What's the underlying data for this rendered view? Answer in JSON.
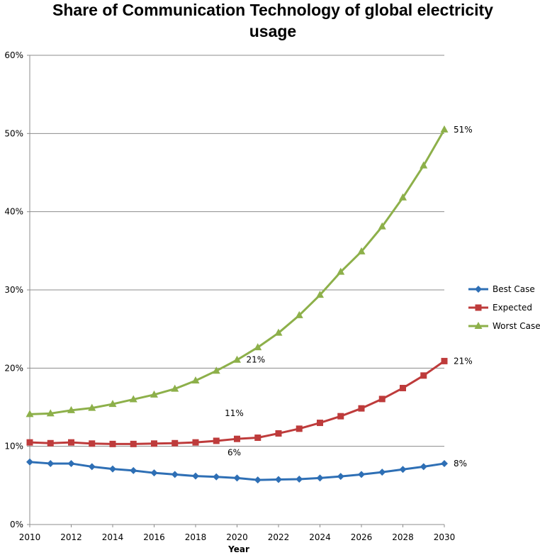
{
  "chart_data": {
    "type": "line",
    "title_lines": [
      "Share of Communication Technology of global electricity",
      "usage"
    ],
    "xlabel": "Year",
    "ylabel": "",
    "x": [
      2010,
      2011,
      2012,
      2013,
      2014,
      2015,
      2016,
      2017,
      2018,
      2019,
      2020,
      2021,
      2022,
      2023,
      2024,
      2025,
      2026,
      2027,
      2028,
      2029,
      2030
    ],
    "xlim": [
      2010,
      2030
    ],
    "ylim": [
      0,
      60
    ],
    "x_ticks": [
      "2010",
      "2012",
      "2014",
      "2016",
      "2018",
      "2020",
      "2022",
      "2024",
      "2026",
      "2028",
      "2030"
    ],
    "y_ticks": [
      "0%",
      "10%",
      "20%",
      "30%",
      "40%",
      "50%",
      "60%"
    ],
    "grid": "horizontal",
    "legend_position": "right",
    "series": [
      {
        "name": "Best Case",
        "color": "#2E6FB5",
        "marker": "diamond",
        "values": [
          8.0,
          7.8,
          7.8,
          7.4,
          7.1,
          6.9,
          6.6,
          6.4,
          6.2,
          6.1,
          5.95,
          5.7,
          5.75,
          5.8,
          5.95,
          6.15,
          6.4,
          6.7,
          7.05,
          7.4,
          7.8
        ]
      },
      {
        "name": "Expected",
        "color": "#BE3B3B",
        "marker": "square",
        "values": [
          10.5,
          10.4,
          10.5,
          10.35,
          10.3,
          10.3,
          10.35,
          10.4,
          10.5,
          10.7,
          10.95,
          11.1,
          11.65,
          12.25,
          13.0,
          13.85,
          14.85,
          16.05,
          17.45,
          19.05,
          20.9
        ]
      },
      {
        "name": "Worst Case",
        "color": "#8DB04A",
        "marker": "triangle",
        "values": [
          14.1,
          14.2,
          14.6,
          14.9,
          15.4,
          16.0,
          16.6,
          17.35,
          18.4,
          19.65,
          21.05,
          22.65,
          24.5,
          26.75,
          29.35,
          32.3,
          34.9,
          38.1,
          41.8,
          45.9,
          50.5
        ]
      }
    ],
    "annotations": [
      {
        "text": "51%",
        "x": 2030,
        "y": 50.5,
        "offset": "right"
      },
      {
        "text": "21%",
        "x": 2030,
        "y": 20.9,
        "offset": "right"
      },
      {
        "text": "8%",
        "x": 2030,
        "y": 7.8,
        "offset": "right"
      },
      {
        "text": "21%",
        "x": 2020,
        "y": 21.05,
        "offset": "right"
      },
      {
        "text": "11%",
        "x": 2020,
        "y": 10.95,
        "offset": "above"
      },
      {
        "text": "6%",
        "x": 2020,
        "y": 5.95,
        "offset": "above"
      }
    ]
  }
}
